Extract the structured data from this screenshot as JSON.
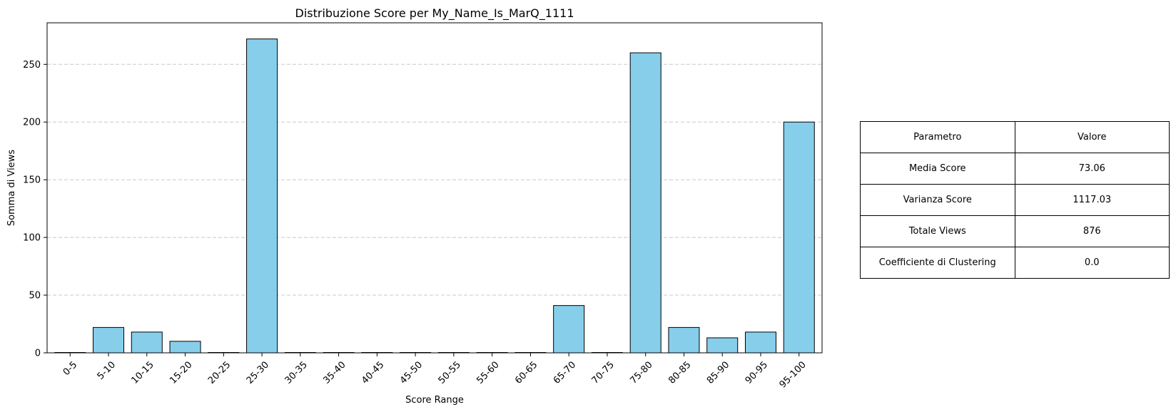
{
  "chart_data": {
    "type": "bar",
    "title": "Distribuzione Score per My_Name_Is_MarQ_1111",
    "xlabel": "Score Range",
    "ylabel": "Somma di Views",
    "categories": [
      "0-5",
      "5-10",
      "10-15",
      "15-20",
      "20-25",
      "25-30",
      "30-35",
      "35-40",
      "40-45",
      "45-50",
      "50-55",
      "55-60",
      "60-65",
      "65-70",
      "70-75",
      "75-80",
      "80-85",
      "85-90",
      "90-95",
      "95-100"
    ],
    "values": [
      0,
      22,
      18,
      10,
      0,
      272,
      0,
      0,
      0,
      0,
      0,
      0,
      0,
      41,
      0,
      260,
      22,
      13,
      18,
      200
    ],
    "ylim": [
      0,
      286
    ],
    "yticks": [
      0,
      50,
      100,
      150,
      200,
      250
    ],
    "grid": "y-dashed",
    "bar_color": "#87ceeb",
    "edge_color": "#000000",
    "grid_color": "#c8c8c8",
    "xtick_rotation": 45
  },
  "table": {
    "headers": [
      "Parametro",
      "Valore"
    ],
    "rows": [
      [
        "Media Score",
        "73.06"
      ],
      [
        "Varianza Score",
        "1117.03"
      ],
      [
        "Totale Views",
        "876"
      ],
      [
        "Coefficiente di Clustering",
        "0.0"
      ]
    ]
  }
}
